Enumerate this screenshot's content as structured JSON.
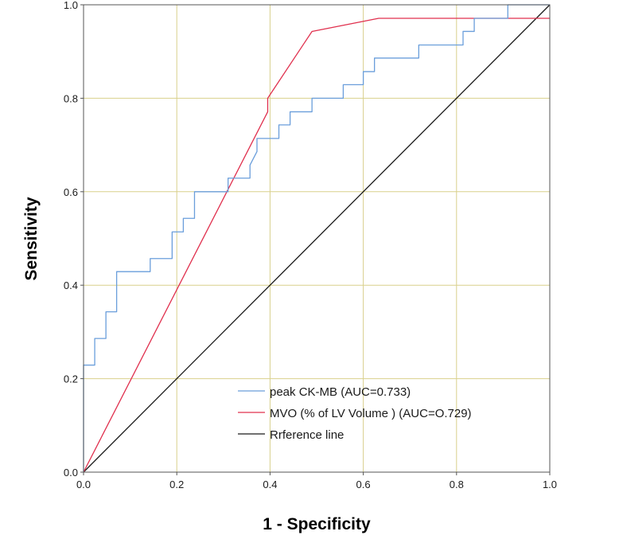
{
  "chart_data": {
    "type": "line",
    "title": "",
    "xlabel": "1 - Specificity",
    "ylabel": "Sensitivity",
    "xlim": [
      0,
      1
    ],
    "ylim": [
      0,
      1
    ],
    "x_ticks": [
      0.0,
      0.2,
      0.4,
      0.6,
      0.8,
      1.0
    ],
    "y_ticks": [
      0.0,
      0.2,
      0.4,
      0.6,
      0.8,
      1.0
    ],
    "x_tick_labels": [
      "0.0",
      "0.2",
      "0.4",
      "0.6",
      "0.8",
      "1.0"
    ],
    "y_tick_labels": [
      "0.0",
      "0.2",
      "0.4",
      "0.6",
      "0.8",
      "1.0"
    ],
    "grid": true,
    "legend_position": "bottom-right",
    "series": [
      {
        "name": "peak CK-MB (AUC=0.733)",
        "color": "#6a9edb",
        "points": [
          [
            0.0,
            0.0
          ],
          [
            0.0,
            0.229
          ],
          [
            0.024,
            0.229
          ],
          [
            0.024,
            0.286
          ],
          [
            0.048,
            0.286
          ],
          [
            0.048,
            0.343
          ],
          [
            0.071,
            0.343
          ],
          [
            0.071,
            0.429
          ],
          [
            0.143,
            0.429
          ],
          [
            0.143,
            0.457
          ],
          [
            0.19,
            0.457
          ],
          [
            0.19,
            0.514
          ],
          [
            0.214,
            0.514
          ],
          [
            0.214,
            0.543
          ],
          [
            0.238,
            0.543
          ],
          [
            0.238,
            0.6
          ],
          [
            0.31,
            0.6
          ],
          [
            0.31,
            0.629
          ],
          [
            0.357,
            0.629
          ],
          [
            0.357,
            0.657
          ],
          [
            0.372,
            0.686
          ],
          [
            0.372,
            0.714
          ],
          [
            0.419,
            0.714
          ],
          [
            0.419,
            0.743
          ],
          [
            0.443,
            0.743
          ],
          [
            0.443,
            0.771
          ],
          [
            0.49,
            0.771
          ],
          [
            0.49,
            0.8
          ],
          [
            0.557,
            0.8
          ],
          [
            0.557,
            0.829
          ],
          [
            0.6,
            0.829
          ],
          [
            0.6,
            0.857
          ],
          [
            0.624,
            0.857
          ],
          [
            0.624,
            0.886
          ],
          [
            0.719,
            0.886
          ],
          [
            0.719,
            0.914
          ],
          [
            0.814,
            0.914
          ],
          [
            0.814,
            0.943
          ],
          [
            0.838,
            0.943
          ],
          [
            0.838,
            0.971
          ],
          [
            0.91,
            0.971
          ],
          [
            0.91,
            1.0
          ],
          [
            1.0,
            1.0
          ]
        ]
      },
      {
        "name": "MVO (% of LV Volume ) (AUC=O.729)",
        "color": "#e0304e",
        "points": [
          [
            0.0,
            0.0
          ],
          [
            0.395,
            0.771
          ],
          [
            0.395,
            0.8
          ],
          [
            0.49,
            0.943
          ],
          [
            0.633,
            0.971
          ],
          [
            1.0,
            0.971
          ]
        ]
      },
      {
        "name": "Rrference line",
        "color": "#1a1a1a",
        "points": [
          [
            0.0,
            0.0
          ],
          [
            1.0,
            1.0
          ]
        ]
      }
    ]
  },
  "colors": {
    "grid": "#d9d08c",
    "axis": "#555555",
    "background": "#ffffff"
  }
}
